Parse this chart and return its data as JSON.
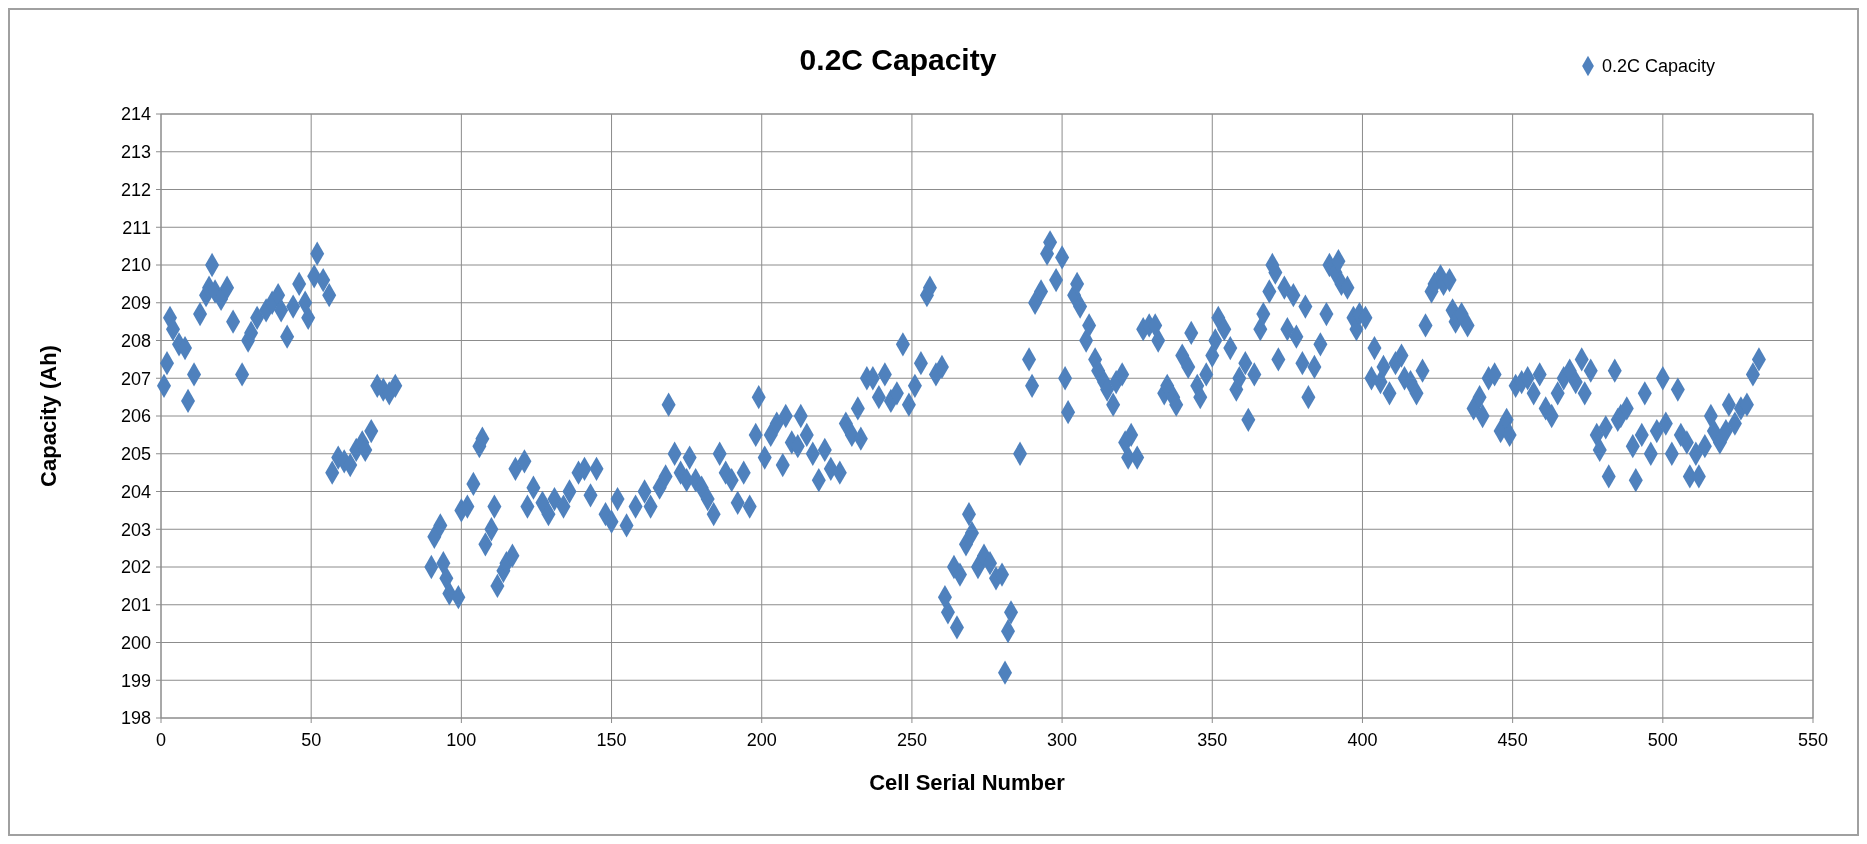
{
  "chart_data": {
    "type": "scatter",
    "title": "0.2C Capacity",
    "xlabel": "Cell Serial Number",
    "ylabel": "Capacity (Ah)",
    "legend": "top right",
    "marker": "diamond",
    "grid": true,
    "xlim": [
      0,
      550
    ],
    "xticks": [
      0,
      50,
      100,
      150,
      200,
      250,
      300,
      350,
      400,
      450,
      500,
      550
    ],
    "ylim": [
      198,
      214
    ],
    "yticks": [
      198,
      199,
      200,
      201,
      202,
      203,
      204,
      205,
      206,
      207,
      208,
      209,
      210,
      211,
      212,
      213,
      214
    ],
    "series": [
      {
        "name": "0.2C Capacity",
        "color": "#4f81bd",
        "x": [
          1,
          2,
          3,
          4,
          6,
          8,
          9,
          11,
          13,
          15,
          16,
          17,
          18,
          20,
          22,
          24,
          27,
          29,
          30,
          32,
          35,
          37,
          39,
          40,
          42,
          44,
          46,
          48,
          49,
          51,
          52,
          54,
          56,
          57,
          59,
          61,
          63,
          65,
          67,
          68,
          70,
          72,
          74,
          76,
          78,
          90,
          91,
          93,
          94,
          95,
          96,
          99,
          100,
          102,
          104,
          106,
          107,
          108,
          110,
          111,
          112,
          114,
          115,
          117,
          118,
          121,
          122,
          124,
          127,
          129,
          131,
          134,
          136,
          139,
          141,
          143,
          145,
          148,
          150,
          152,
          155,
          158,
          161,
          163,
          166,
          168,
          169,
          171,
          173,
          175,
          176,
          178,
          180,
          182,
          184,
          186,
          188,
          190,
          192,
          194,
          196,
          198,
          199,
          201,
          203,
          205,
          207,
          208,
          210,
          212,
          213,
          215,
          217,
          219,
          221,
          223,
          226,
          228,
          230,
          232,
          233,
          235,
          237,
          239,
          241,
          243,
          245,
          247,
          249,
          251,
          253,
          255,
          256,
          258,
          260,
          261,
          262,
          264,
          265,
          266,
          268,
          269,
          270,
          272,
          274,
          276,
          278,
          280,
          281,
          282,
          283,
          286,
          289,
          290,
          291,
          293,
          295,
          296,
          298,
          300,
          301,
          302,
          304,
          305,
          306,
          308,
          309,
          311,
          312,
          314,
          315,
          317,
          318,
          320,
          321,
          322,
          323,
          325,
          327,
          329,
          331,
          332,
          334,
          335,
          337,
          338,
          340,
          342,
          343,
          345,
          346,
          348,
          350,
          351,
          352,
          354,
          356,
          358,
          359,
          361,
          362,
          364,
          366,
          367,
          369,
          370,
          371,
          372,
          374,
          375,
          377,
          378,
          380,
          381,
          382,
          384,
          386,
          388,
          389,
          391,
          392,
          393,
          395,
          397,
          398,
          399,
          401,
          403,
          404,
          406,
          407,
          409,
          411,
          413,
          414,
          416,
          418,
          420,
          421,
          423,
          424,
          426,
          427,
          429,
          430,
          431,
          433,
          435,
          437,
          439,
          440,
          442,
          444,
          446,
          448,
          449,
          451,
          453,
          455,
          457,
          459,
          461,
          463,
          465,
          467,
          469,
          471,
          473,
          474,
          476,
          478,
          479,
          481,
          482,
          484,
          485,
          486,
          488,
          490,
          491,
          493,
          494,
          496,
          498,
          500,
          501,
          503,
          505,
          506,
          508,
          509,
          511,
          512,
          514,
          516,
          517,
          519,
          521,
          522,
          524,
          526,
          528,
          530,
          532
        ],
        "values": [
          206.8,
          207.4,
          208.6,
          208.3,
          207.9,
          207.8,
          206.4,
          207.1,
          208.7,
          209.2,
          209.4,
          210.0,
          209.3,
          209.1,
          209.4,
          208.5,
          207.1,
          208.0,
          208.2,
          208.6,
          208.8,
          209.0,
          209.2,
          208.8,
          208.1,
          208.9,
          209.5,
          209.0,
          208.6,
          209.7,
          210.3,
          209.6,
          209.2,
          204.5,
          204.9,
          204.8,
          204.7,
          205.1,
          205.3,
          205.1,
          205.6,
          206.8,
          206.7,
          206.6,
          206.8,
          202.0,
          202.8,
          203.1,
          202.1,
          201.7,
          201.3,
          201.2,
          203.5,
          203.6,
          204.2,
          205.2,
          205.4,
          202.6,
          203.0,
          203.6,
          201.5,
          201.9,
          202.1,
          202.3,
          204.6,
          204.8,
          203.6,
          204.1,
          203.7,
          203.4,
          203.8,
          203.6,
          204.0,
          204.5,
          204.6,
          203.9,
          204.6,
          203.4,
          203.2,
          203.8,
          203.1,
          203.6,
          204.0,
          203.6,
          204.1,
          204.4,
          206.3,
          205.0,
          204.5,
          204.3,
          204.9,
          204.3,
          204.1,
          203.8,
          203.4,
          205.0,
          204.5,
          204.3,
          203.7,
          204.5,
          203.6,
          205.5,
          206.5,
          204.9,
          205.5,
          205.8,
          204.7,
          206.0,
          205.3,
          205.2,
          206.0,
          205.5,
          205.0,
          204.3,
          205.1,
          204.6,
          204.5,
          205.8,
          205.5,
          206.2,
          205.4,
          207.0,
          207.0,
          206.5,
          207.1,
          206.4,
          206.6,
          207.9,
          206.3,
          206.8,
          207.4,
          209.2,
          209.4,
          207.1,
          207.3,
          201.2,
          200.8,
          202.0,
          200.4,
          201.8,
          202.6,
          203.4,
          202.9,
          202.0,
          202.3,
          202.1,
          201.7,
          201.8,
          199.2,
          200.3,
          200.8,
          205.0,
          207.5,
          206.8,
          209.0,
          209.3,
          210.3,
          210.6,
          209.6,
          210.2,
          207.0,
          206.1,
          209.2,
          209.5,
          208.9,
          208.0,
          208.4,
          207.5,
          207.2,
          206.9,
          206.7,
          206.3,
          206.9,
          207.1,
          205.3,
          204.9,
          205.5,
          204.9,
          208.3,
          208.4,
          208.4,
          208.0,
          206.6,
          206.8,
          206.5,
          206.3,
          207.6,
          207.3,
          208.2,
          206.8,
          206.5,
          207.1,
          207.6,
          208.0,
          208.6,
          208.3,
          207.8,
          206.7,
          207.0,
          207.4,
          205.9,
          207.1,
          208.3,
          208.7,
          209.3,
          210.0,
          209.8,
          207.5,
          209.4,
          208.3,
          209.2,
          208.1,
          207.4,
          208.9,
          206.5,
          207.3,
          207.9,
          208.7,
          210.0,
          209.8,
          210.1,
          209.5,
          209.4,
          208.6,
          208.3,
          208.7,
          208.6,
          207.0,
          207.8,
          206.9,
          207.3,
          206.6,
          207.4,
          207.6,
          207.0,
          206.9,
          206.6,
          207.2,
          208.4,
          209.3,
          209.5,
          209.7,
          209.5,
          209.6,
          208.8,
          208.5,
          208.7,
          208.4,
          206.2,
          206.5,
          206.0,
          207.0,
          207.1,
          205.6,
          205.9,
          205.5,
          206.8,
          206.9,
          207.0,
          206.6,
          207.1,
          206.2,
          206.0,
          206.6,
          207.0,
          207.2,
          206.9,
          207.5,
          206.6,
          207.2,
          205.5,
          205.1,
          205.7,
          204.4,
          207.2,
          205.9,
          206.0,
          206.2,
          205.2,
          204.3,
          205.5,
          206.6,
          205.0,
          205.6,
          207.0,
          205.8,
          205.0,
          206.7,
          205.5,
          205.3,
          204.4,
          205.0,
          204.4,
          205.2,
          206.0,
          205.6,
          205.3,
          205.6,
          206.3,
          205.8,
          206.2,
          206.3,
          207.1,
          207.5
        ]
      }
    ]
  }
}
